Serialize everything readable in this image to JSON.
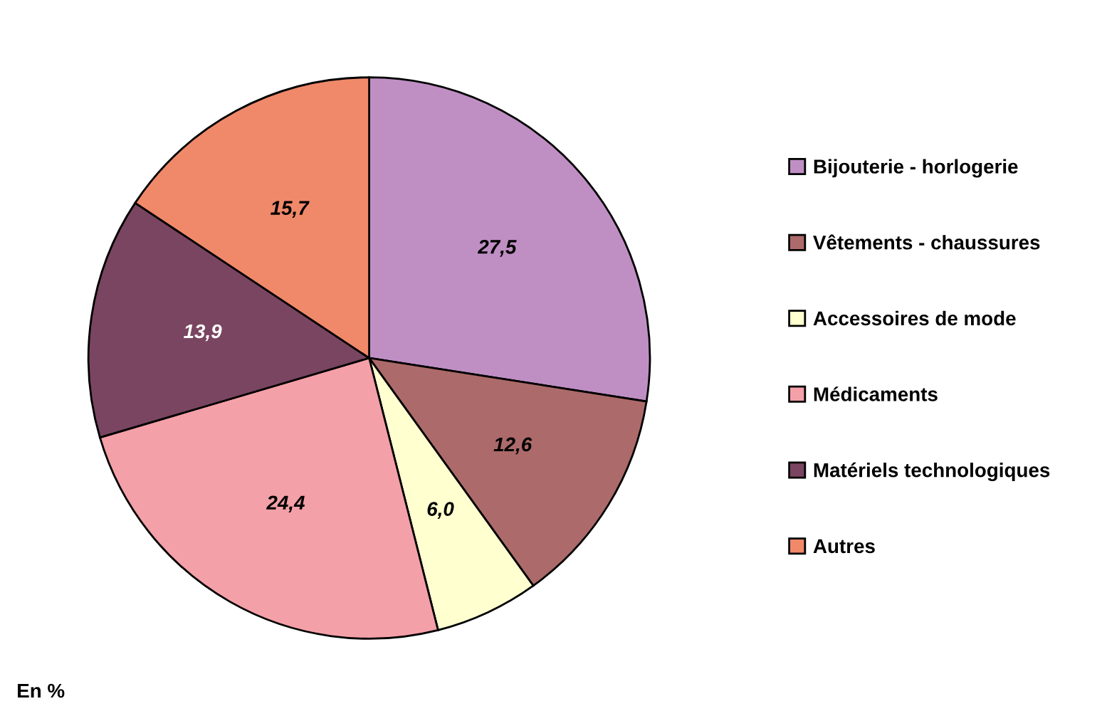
{
  "chart_data": {
    "type": "pie",
    "categories": [
      "Bijouterie - horlogerie",
      "Vêtements - chaussures",
      "Accessoires de mode",
      "Médicaments",
      "Matériels technologiques",
      "Autres"
    ],
    "values": [
      27.5,
      12.6,
      6.0,
      24.4,
      13.9,
      15.7
    ],
    "value_labels": [
      "27,5",
      "12,6",
      "6,0",
      "24,4",
      "13,9",
      "15,7"
    ],
    "colors": [
      "#bf8fc4",
      "#ad6a6a",
      "#ffffd0",
      "#f4a0a8",
      "#7a4560",
      "#f0896a"
    ],
    "legend": "right",
    "annotations": [
      "En %"
    ]
  }
}
